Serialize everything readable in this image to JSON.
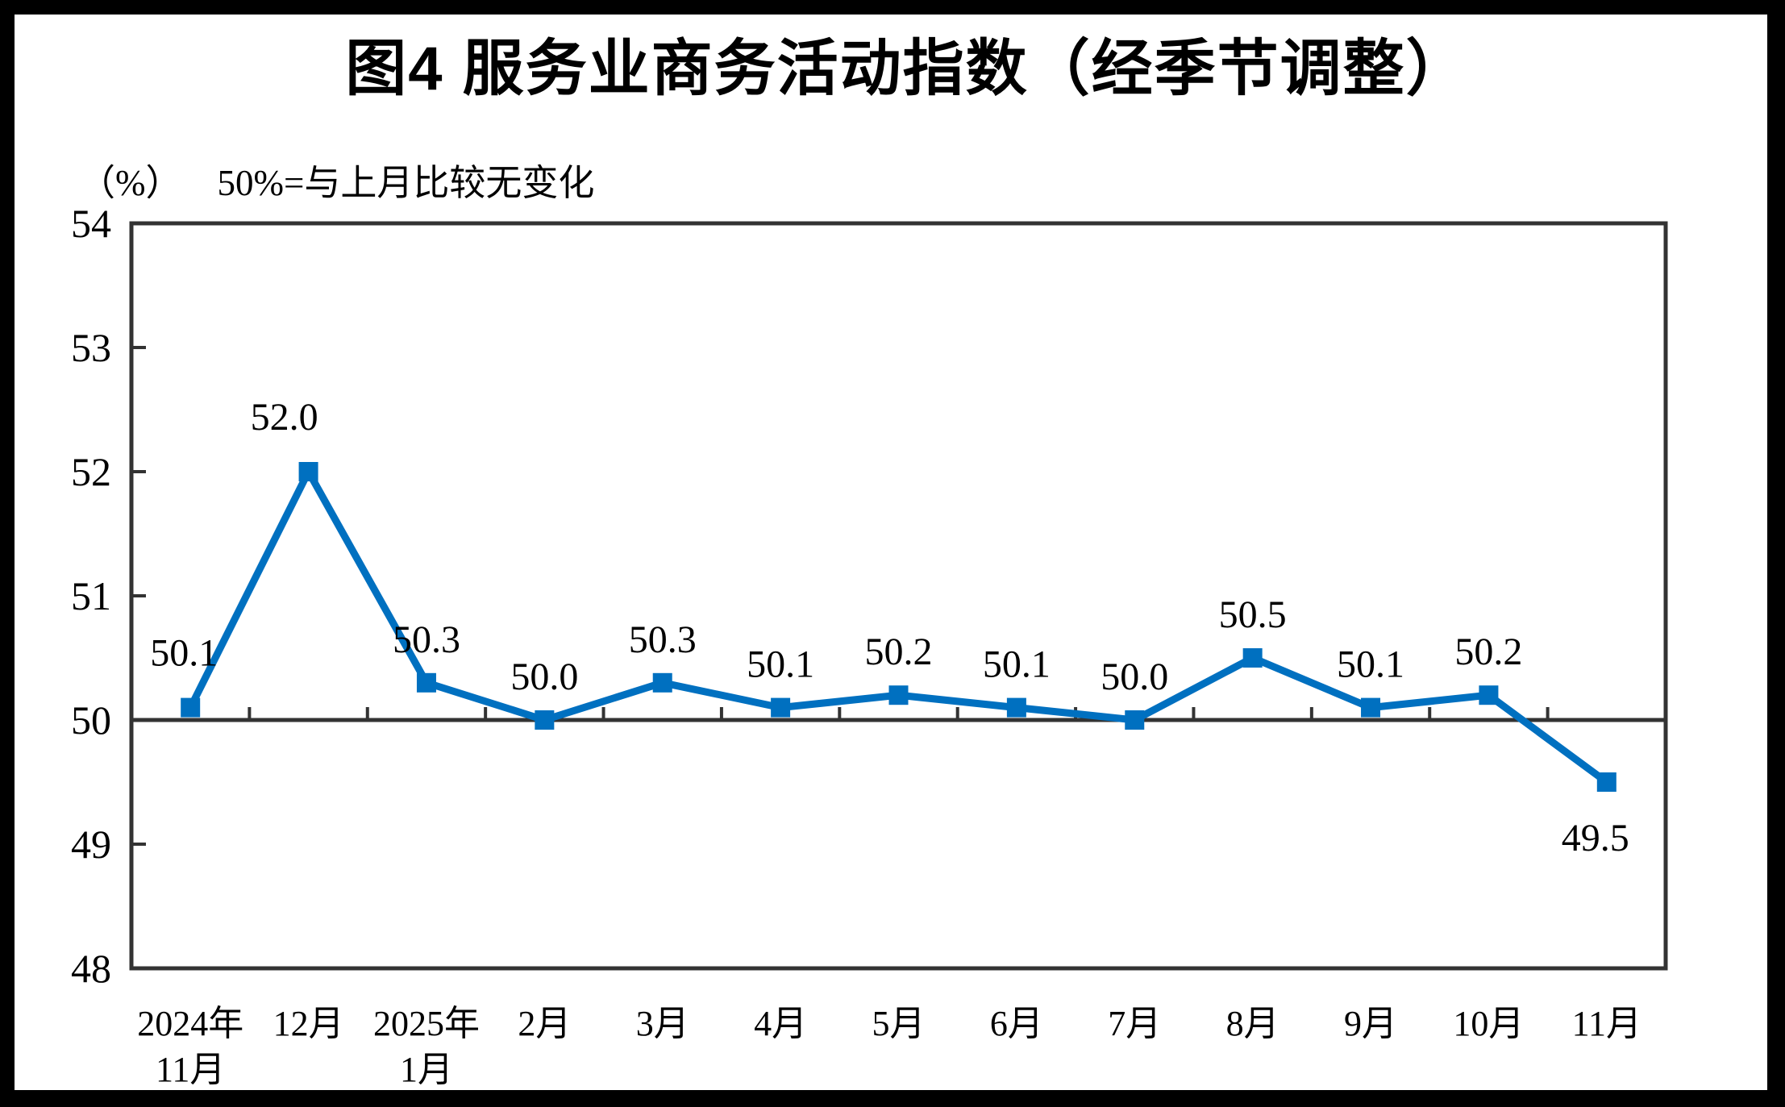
{
  "title": "图4  服务业商务活动指数（经季节调整）",
  "subtitle": {
    "unit": "（%）",
    "note": "50%=与上月比较无变化"
  },
  "colors": {
    "line": "#0070C0",
    "marker": "#0070C0",
    "axis": "#333333",
    "text": "#000000",
    "background": "#FFFFFF",
    "frame": "#000000"
  },
  "chart_data": {
    "type": "line",
    "title": "图4 服务业商务活动指数（经季节调整）",
    "unit_label": "（%）",
    "reference_note": "50%=与上月比较无变化",
    "reference_value": 50,
    "categories": [
      [
        "2024年",
        "11月"
      ],
      [
        "12月"
      ],
      [
        "2025年",
        "1月"
      ],
      [
        "2月"
      ],
      [
        "3月"
      ],
      [
        "4月"
      ],
      [
        "5月"
      ],
      [
        "6月"
      ],
      [
        "7月"
      ],
      [
        "8月"
      ],
      [
        "9月"
      ],
      [
        "10月"
      ],
      [
        "11月"
      ]
    ],
    "values": [
      50.1,
      52.0,
      50.3,
      50.0,
      50.3,
      50.1,
      50.2,
      50.1,
      50.0,
      50.5,
      50.1,
      50.2,
      49.5
    ],
    "data_labels": [
      "50.1",
      "52.0",
      "50.3",
      "50.0",
      "50.3",
      "50.1",
      "50.2",
      "50.1",
      "50.0",
      "50.5",
      "50.1",
      "50.2",
      "49.5"
    ],
    "ylim": [
      48,
      54
    ],
    "y_ticks": [
      48,
      49,
      50,
      51,
      52,
      53,
      54
    ],
    "xlabel": "",
    "ylabel": "（%）",
    "grid": false,
    "legend_position": "none",
    "marker": "square",
    "line_width": 9
  }
}
